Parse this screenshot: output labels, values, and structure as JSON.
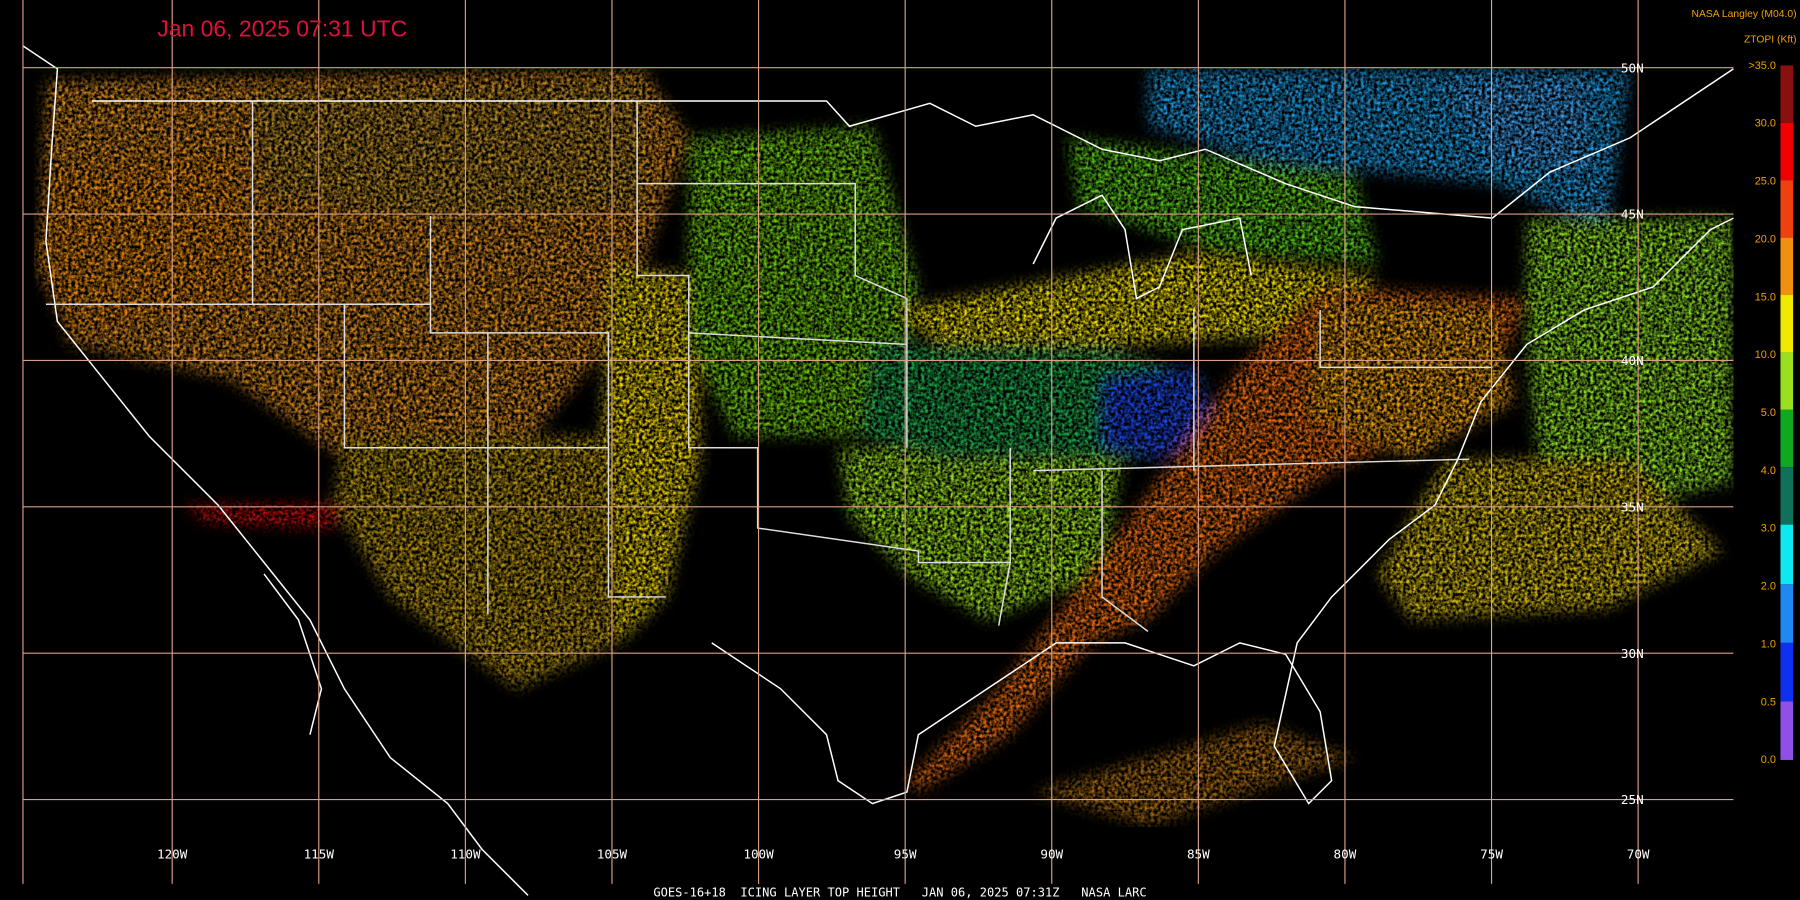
{
  "header": {
    "timestamp": "Jan 06, 2025 07:31 UTC",
    "credit": "NASA Langley (M04.0)",
    "product_label": "ZTOPI (Kft)"
  },
  "colorbar": {
    "labels": [
      ">35.0",
      "30.0",
      "25.0",
      "20.0",
      "15.0",
      "10.0",
      "5.0",
      "4.0",
      "3.0",
      "2.0",
      "1.0",
      "0.5",
      "0.0"
    ]
  },
  "grid": {
    "longitudes": [
      "120W",
      "115W",
      "110W",
      "105W",
      "100W",
      "95W",
      "90W",
      "85W",
      "80W",
      "75W",
      "70W"
    ],
    "latitudes": [
      "50N",
      "45N",
      "40N",
      "35N",
      "30N",
      "25N"
    ]
  },
  "footer": "GOES-16+18  ICING LAYER TOP HEIGHT   JAN 06, 2025 07:31Z   NASA LARC"
}
